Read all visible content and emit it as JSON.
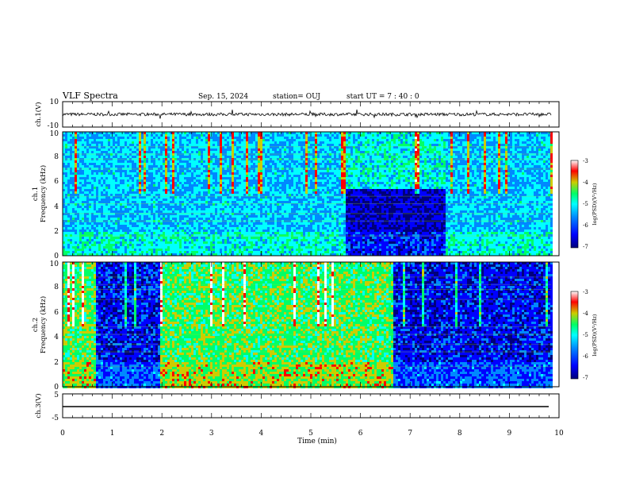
{
  "header": {
    "title": "VLF Spectra",
    "date": "Sep. 15, 2024",
    "station": "station= OUJ",
    "start": "start  UT  =   7 : 40 : 0"
  },
  "chart_data": [
    {
      "type": "line",
      "panel": "ch1-waveform",
      "ylabel": "ch.1(V)",
      "ylim": [
        -10,
        10
      ],
      "y_ticks": [
        "10",
        "-10"
      ],
      "baseline": 0,
      "noise_amplitude": 1.2
    },
    {
      "type": "heatmap",
      "panel": "ch1-spectrogram",
      "ylabel_line1": "ch.1",
      "ylabel_line2": "Frequency  (kHz)",
      "x_range_min": [
        0,
        9.85
      ],
      "ylim_khz": [
        0,
        10
      ],
      "y_ticks": [
        "0",
        "2",
        "4",
        "6",
        "8",
        "10"
      ],
      "segments": [
        {
          "start_min": 0,
          "end_min": 5.7,
          "level": "moderate"
        },
        {
          "start_min": 5.7,
          "end_min": 7.7,
          "level": "quiet-lower / bursts-upper"
        },
        {
          "start_min": 7.7,
          "end_min": 9.85,
          "level": "moderate"
        }
      ],
      "colorbar": {
        "label": "log(PSD)(V²/Hz)",
        "ticks": [
          "-3",
          "-4",
          "-5",
          "-6",
          "-7"
        ],
        "range": [
          -7,
          -3
        ]
      }
    },
    {
      "type": "heatmap",
      "panel": "ch2-spectrogram",
      "ylabel_line1": "ch.2",
      "ylabel_line2": "Frequency  (kHz)",
      "x_range_min": [
        0,
        9.85
      ],
      "ylim_khz": [
        0,
        10
      ],
      "y_ticks": [
        "0",
        "2",
        "4",
        "6",
        "8",
        "10"
      ],
      "segments": [
        {
          "start_min": 0,
          "end_min": 0.65,
          "level": "high"
        },
        {
          "start_min": 0.65,
          "end_min": 1.95,
          "level": "low"
        },
        {
          "start_min": 1.95,
          "end_min": 6.65,
          "level": "high"
        },
        {
          "start_min": 6.65,
          "end_min": 9.85,
          "level": "low"
        }
      ],
      "colorbar": {
        "label": "log(PSD)(V²/Hz)",
        "ticks": [
          "-3",
          "-4",
          "-5",
          "-6",
          "-7"
        ],
        "range": [
          -7,
          -3
        ]
      }
    },
    {
      "type": "line",
      "panel": "ch3-waveform",
      "ylabel": "ch.3(V)",
      "ylim": [
        -5,
        5
      ],
      "y_ticks": [
        "5",
        "-5"
      ],
      "constant_value": -1.5
    }
  ],
  "xaxis": {
    "label": "Time  (min)",
    "ticks": [
      "0",
      "1",
      "2",
      "3",
      "4",
      "5",
      "6",
      "7",
      "8",
      "9",
      "10"
    ],
    "xlim": [
      0,
      10
    ]
  },
  "colors": {
    "scale": [
      "#00007a",
      "#0000ff",
      "#0088ff",
      "#00ffff",
      "#00ff66",
      "#cccc00",
      "#ff0000",
      "#ffffff"
    ]
  }
}
